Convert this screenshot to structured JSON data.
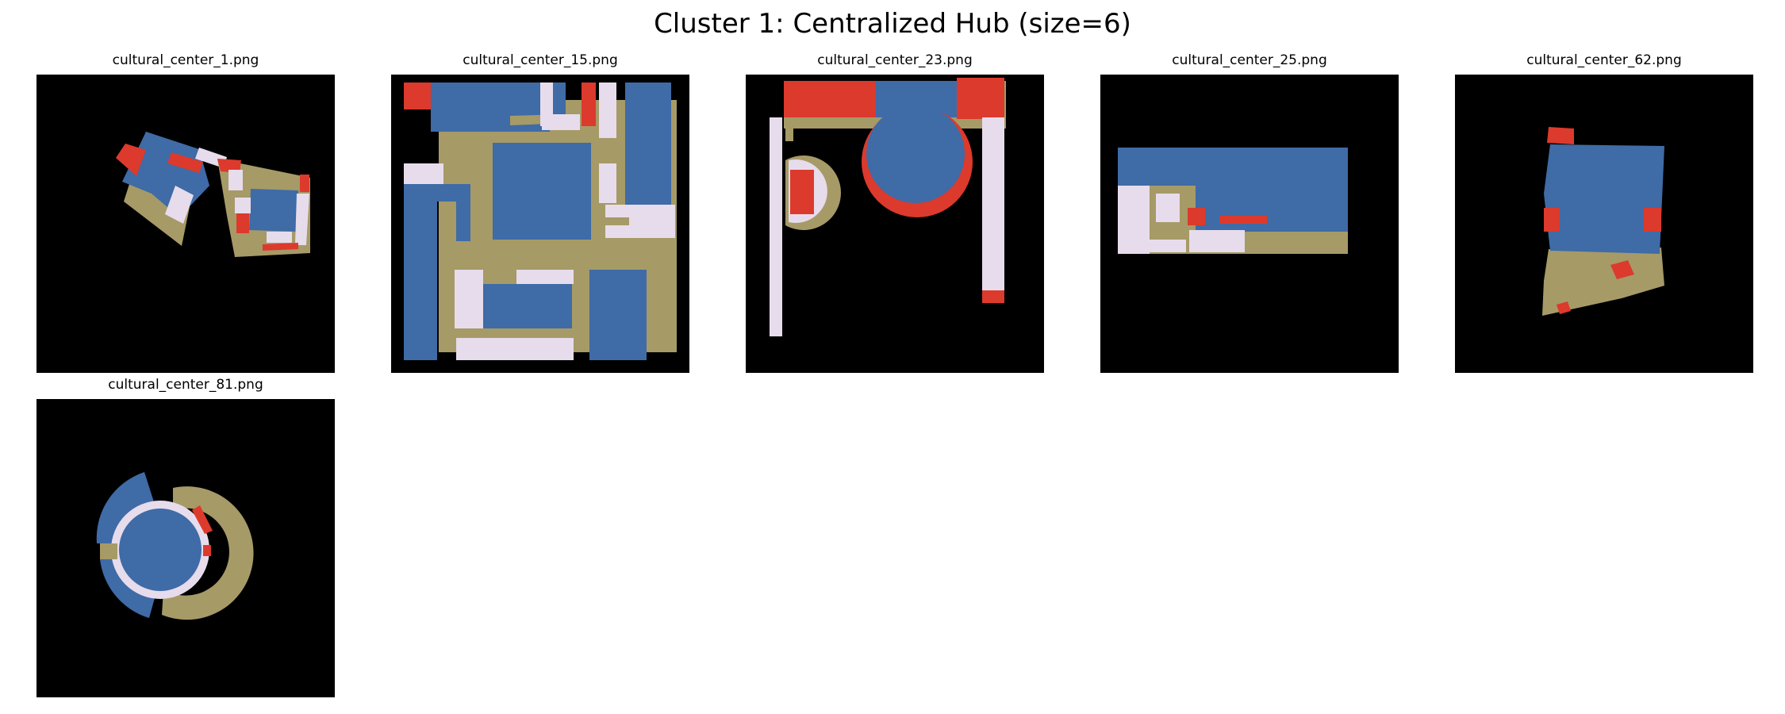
{
  "figure": {
    "title": "Cluster 1: Centralized Hub (size=6)"
  },
  "colors": {
    "background": "#000000",
    "blue": "#3f6ba7",
    "tan": "#a69a67",
    "red": "#dc3a2c",
    "lavender": "#e7dcec"
  },
  "panels": [
    {
      "title": "cultural_center_1.png"
    },
    {
      "title": "cultural_center_15.png"
    },
    {
      "title": "cultural_center_23.png"
    },
    {
      "title": "cultural_center_25.png"
    },
    {
      "title": "cultural_center_62.png"
    },
    {
      "title": "cultural_center_81.png"
    }
  ]
}
